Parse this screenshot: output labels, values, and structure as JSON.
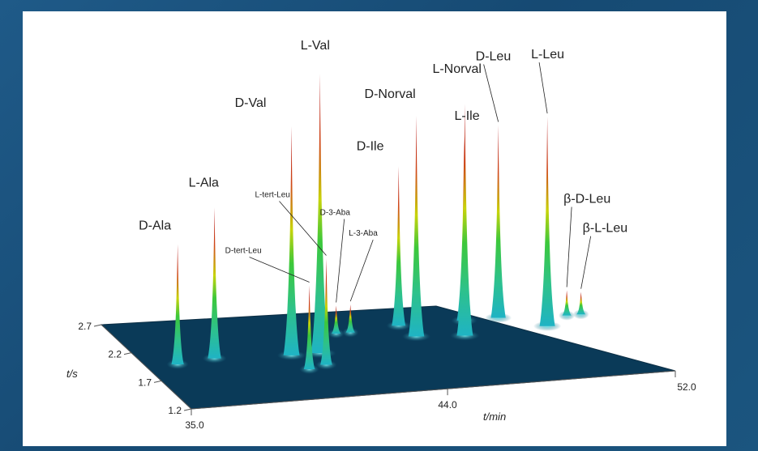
{
  "chart_data": {
    "type": "3d-surface",
    "title": "",
    "xlabel": "t/min",
    "ylabel": "t/s",
    "x_ticks": [
      "35.0",
      "44.0",
      "52.0"
    ],
    "y_ticks": [
      "2.7",
      "2.2",
      "1.7",
      "1.2"
    ],
    "xlim": [
      35.0,
      52.0
    ],
    "ylim": [
      1.2,
      2.7
    ],
    "peaks": [
      {
        "label": "D-Ala",
        "t1": 36.1,
        "t2": 1.95,
        "height": 0.43
      },
      {
        "label": "L-Ala",
        "t1": 37.5,
        "t2": 2.0,
        "height": 0.54
      },
      {
        "label": "D-tert-Leu",
        "t1": 40.2,
        "t2": 1.7,
        "height": 0.3
      },
      {
        "label": "D-Val",
        "t1": 40.1,
        "t2": 1.95,
        "height": 0.82
      },
      {
        "label": "L-tert-Leu",
        "t1": 40.9,
        "t2": 1.75,
        "height": 0.38
      },
      {
        "label": "L-Val",
        "t1": 41.1,
        "t2": 1.95,
        "height": 1.0
      },
      {
        "label": "D-3-Aba",
        "t1": 42.3,
        "t2": 2.25,
        "height": 0.1
      },
      {
        "label": "L-3-Aba",
        "t1": 42.8,
        "t2": 2.25,
        "height": 0.1
      },
      {
        "label": "D-Ile",
        "t1": 44.6,
        "t2": 2.3,
        "height": 0.57
      },
      {
        "label": "D-Norval",
        "t1": 44.8,
        "t2": 2.1,
        "height": 0.79
      },
      {
        "label": "L-Norval",
        "t1": 46.4,
        "t2": 2.05,
        "height": 0.83
      },
      {
        "label": "L-Ile",
        "t1": 46.9,
        "t2": 2.3,
        "height": 0.66
      },
      {
        "label": "D-Leu",
        "t1": 48.1,
        "t2": 2.3,
        "height": 0.69
      },
      {
        "label": "L-Leu",
        "t1": 49.4,
        "t2": 2.1,
        "height": 0.75
      },
      {
        "label": "β-D-Leu",
        "t1": 50.4,
        "t2": 2.25,
        "height": 0.09
      },
      {
        "label": "β-L-Leu",
        "t1": 50.9,
        "t2": 2.25,
        "height": 0.08
      }
    ]
  }
}
